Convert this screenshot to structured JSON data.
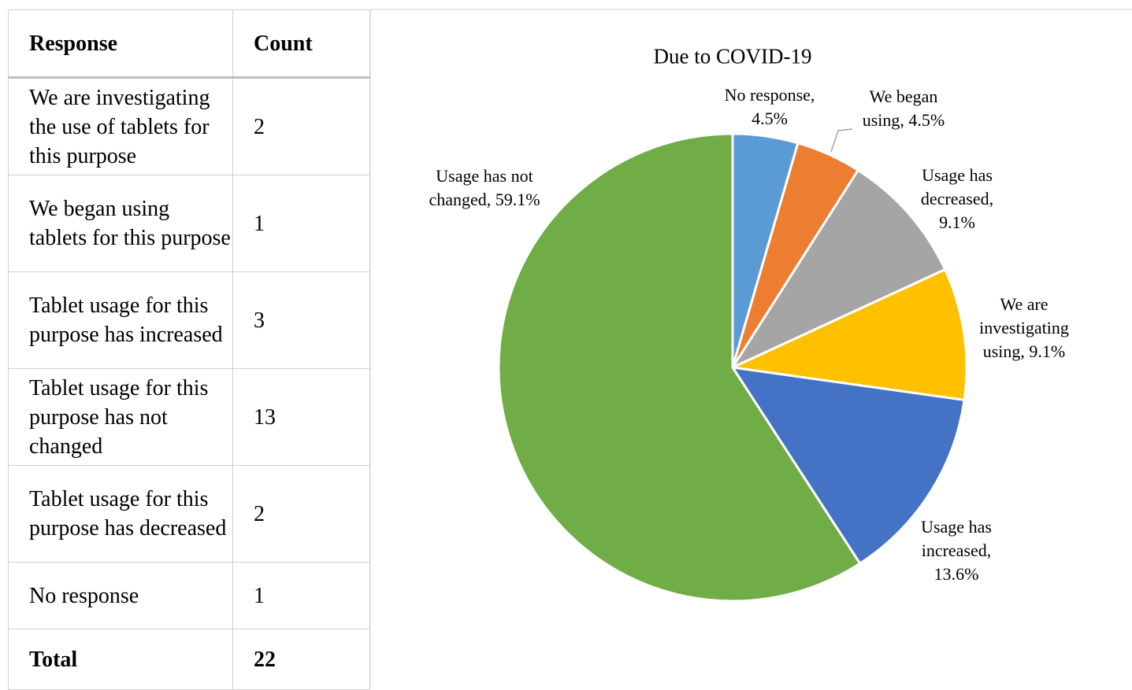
{
  "table": {
    "header": [
      "Response",
      "Count"
    ],
    "rows": [
      [
        "We are investigating the use of tablets for this purpose",
        "2"
      ],
      [
        "We began using tablets for this purpose",
        "1"
      ],
      [
        "Tablet usage for this purpose has increased",
        "3"
      ],
      [
        "Tablet usage for this purpose has not changed",
        "13"
      ],
      [
        "Tablet usage for this purpose has decreased",
        "2"
      ],
      [
        "No response",
        "1"
      ]
    ],
    "total": [
      "Total",
      "22"
    ]
  },
  "chart_data": {
    "type": "pie",
    "title": "Due to COVID-19",
    "values": [
      4.5,
      4.5,
      9.1,
      9.1,
      13.6,
      59.1
    ],
    "value_labels": [
      "No response, 4.5%",
      "We began using, 4.5%",
      "Usage has decreased, 9.1%",
      "We are investigating using, 9.1%",
      "Usage has increased, 13.6%",
      "Usage has not changed, 59.1%"
    ],
    "colors": [
      "#5b9bd5",
      "#ed7d31",
      "#a5a5a5",
      "#ffc000",
      "#4472c4",
      "#70ad47"
    ]
  }
}
